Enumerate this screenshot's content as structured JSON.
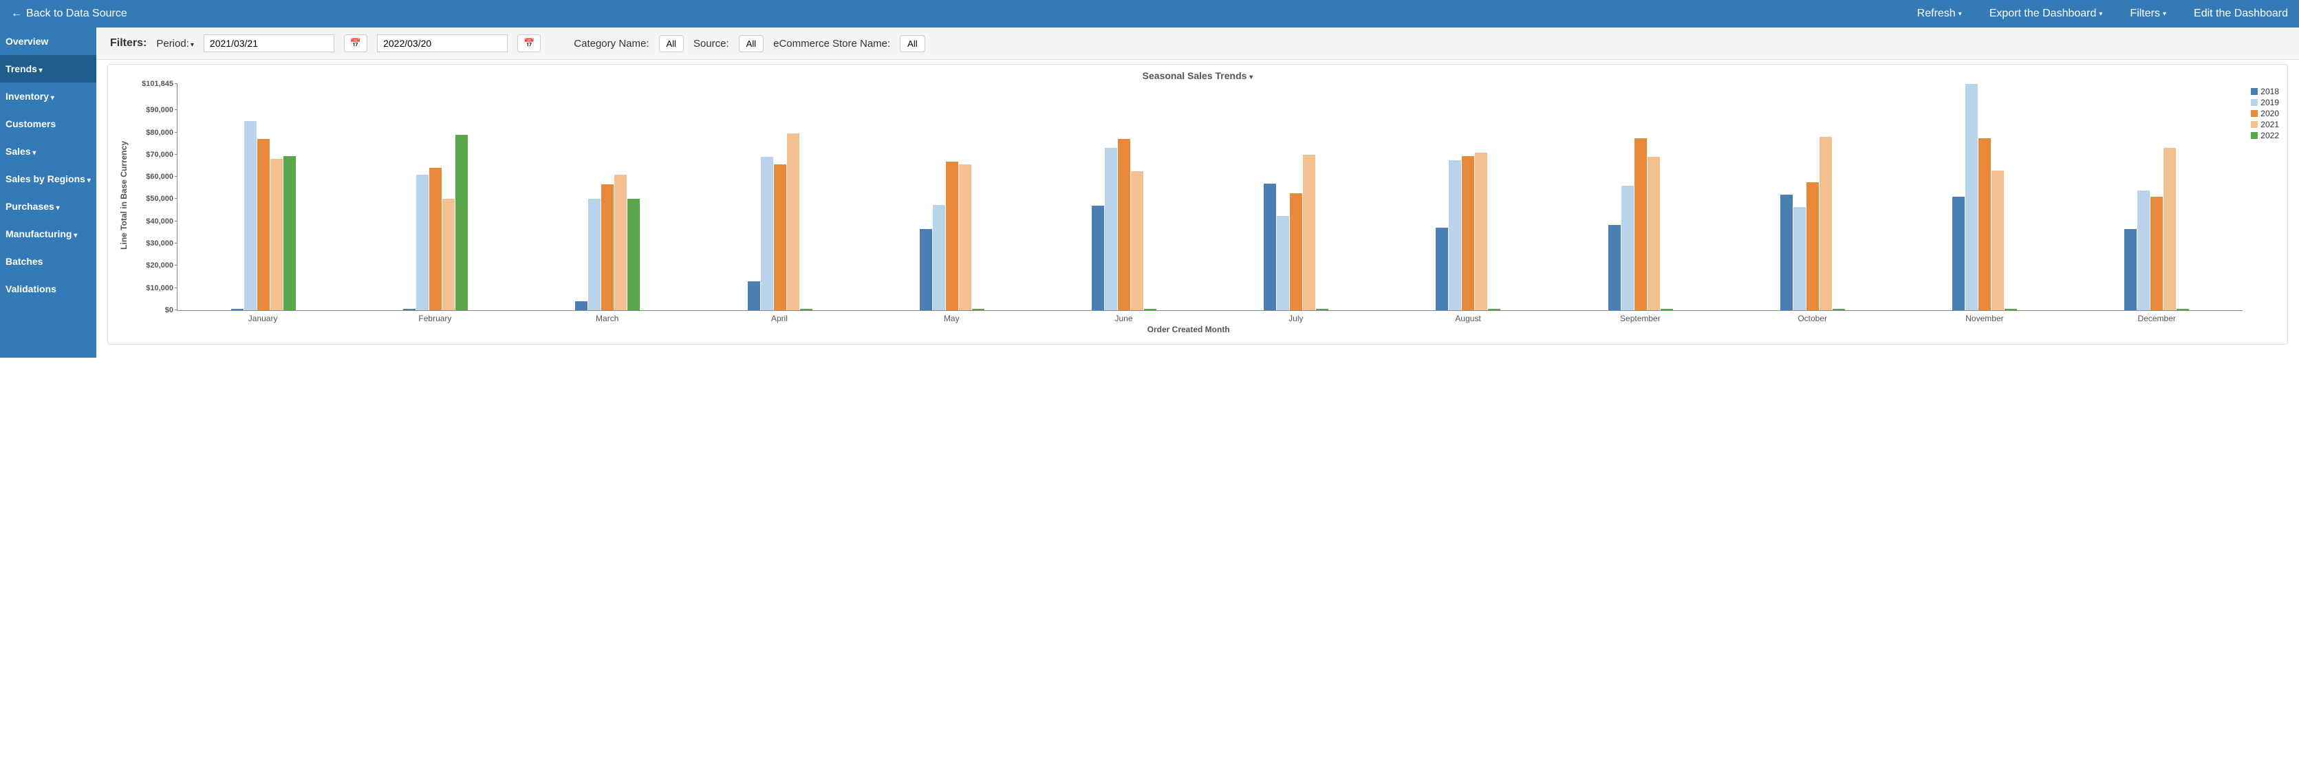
{
  "header": {
    "back_label": "Back to Data Source",
    "actions": {
      "refresh": "Refresh",
      "export": "Export the Dashboard",
      "filters": "Filters",
      "edit": "Edit the Dashboard"
    }
  },
  "sidebar": {
    "items": [
      {
        "label": "Overview",
        "has_sub": false,
        "active": false
      },
      {
        "label": "Trends",
        "has_sub": true,
        "active": true
      },
      {
        "label": "Inventory",
        "has_sub": true,
        "active": false
      },
      {
        "label": "Customers",
        "has_sub": false,
        "active": false
      },
      {
        "label": "Sales",
        "has_sub": true,
        "active": false
      },
      {
        "label": "Sales by Regions",
        "has_sub": true,
        "active": false
      },
      {
        "label": "Purchases",
        "has_sub": true,
        "active": false
      },
      {
        "label": "Manufacturing",
        "has_sub": true,
        "active": false
      },
      {
        "label": "Batches",
        "has_sub": false,
        "active": false
      },
      {
        "label": "Validations",
        "has_sub": false,
        "active": false
      }
    ]
  },
  "filters": {
    "title": "Filters:",
    "period_label": "Period:",
    "date_from": "2021/03/21",
    "date_to": "2022/03/20",
    "category_label": "Category Name:",
    "category_value": "All",
    "source_label": "Source:",
    "source_value": "All",
    "store_label": "eCommerce Store Name:",
    "store_value": "All"
  },
  "chart": {
    "type": "bar",
    "title": "Seasonal Sales Trends",
    "y_axis_label": "Line Total in Base Currency",
    "x_axis_label": "Order Created Month",
    "y_max": 101845,
    "y_ticks": [
      {
        "v": 0,
        "label": "$0"
      },
      {
        "v": 10000,
        "label": "$10,000"
      },
      {
        "v": 20000,
        "label": "$20,000"
      },
      {
        "v": 30000,
        "label": "$30,000"
      },
      {
        "v": 40000,
        "label": "$40,000"
      },
      {
        "v": 50000,
        "label": "$50,000"
      },
      {
        "v": 60000,
        "label": "$60,000"
      },
      {
        "v": 70000,
        "label": "$70,000"
      },
      {
        "v": 80000,
        "label": "$80,000"
      },
      {
        "v": 90000,
        "label": "$90,000"
      },
      {
        "v": 101845,
        "label": "$101,845"
      }
    ],
    "categories": [
      "January",
      "February",
      "March",
      "April",
      "May",
      "June",
      "July",
      "August",
      "September",
      "October",
      "November",
      "December"
    ],
    "series": [
      {
        "name": "2018",
        "color": "#4b7fb3",
        "values": [
          500,
          500,
          4000,
          13000,
          36500,
          47000,
          57000,
          37000,
          38500,
          52000,
          51000,
          36500
        ]
      },
      {
        "name": "2019",
        "color": "#b9d3ea",
        "values": [
          85000,
          61000,
          50000,
          69000,
          47500,
          73000,
          42500,
          67500,
          56000,
          46500,
          101845,
          54000
        ]
      },
      {
        "name": "2020",
        "color": "#e8893a",
        "values": [
          77000,
          64000,
          56500,
          65500,
          67000,
          77000,
          52500,
          69500,
          77500,
          57500,
          77500,
          51000
        ]
      },
      {
        "name": "2021",
        "color": "#f3c18f",
        "values": [
          68000,
          50000,
          61000,
          79500,
          65500,
          62500,
          70000,
          71000,
          69000,
          78000,
          63000,
          73000
        ]
      },
      {
        "name": "2022",
        "color": "#5aa64b",
        "values": [
          69500,
          79000,
          50000,
          500,
          500,
          500,
          500,
          500,
          500,
          500,
          500,
          500
        ]
      }
    ],
    "background_color": "#ffffff",
    "axis_color": "#888888",
    "title_fontsize": 14,
    "label_fontsize": 12
  }
}
